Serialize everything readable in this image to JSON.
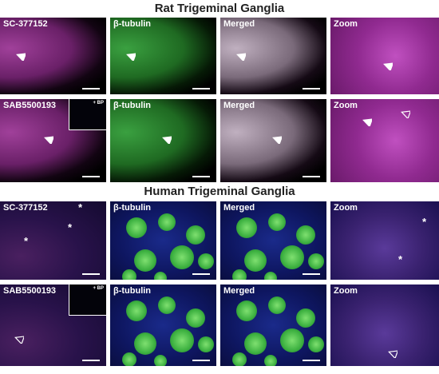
{
  "sections": [
    {
      "title": "Rat Trigeminal Ganglia",
      "rows": [
        {
          "panels": [
            {
              "label": "SC-377152"
            },
            {
              "label": "β-tubulin"
            },
            {
              "label": "Merged"
            },
            {
              "label": "Zoom"
            }
          ]
        },
        {
          "panels": [
            {
              "label": "SAB5500193",
              "inset": "+ BP"
            },
            {
              "label": "β-tubulin"
            },
            {
              "label": "Merged"
            },
            {
              "label": "Zoom"
            }
          ]
        }
      ]
    },
    {
      "title": "Human Trigeminal Ganglia",
      "rows": [
        {
          "panels": [
            {
              "label": "SC-377152",
              "marks": [
                "*",
                "*",
                "*"
              ]
            },
            {
              "label": "β-tubulin"
            },
            {
              "label": "Merged"
            },
            {
              "label": "Zoom",
              "marks": [
                "*",
                "*"
              ]
            }
          ]
        },
        {
          "panels": [
            {
              "label": "SAB5500193",
              "inset": "+ BP"
            },
            {
              "label": "β-tubulin"
            },
            {
              "label": "Merged"
            },
            {
              "label": "Zoom"
            }
          ]
        }
      ]
    }
  ]
}
